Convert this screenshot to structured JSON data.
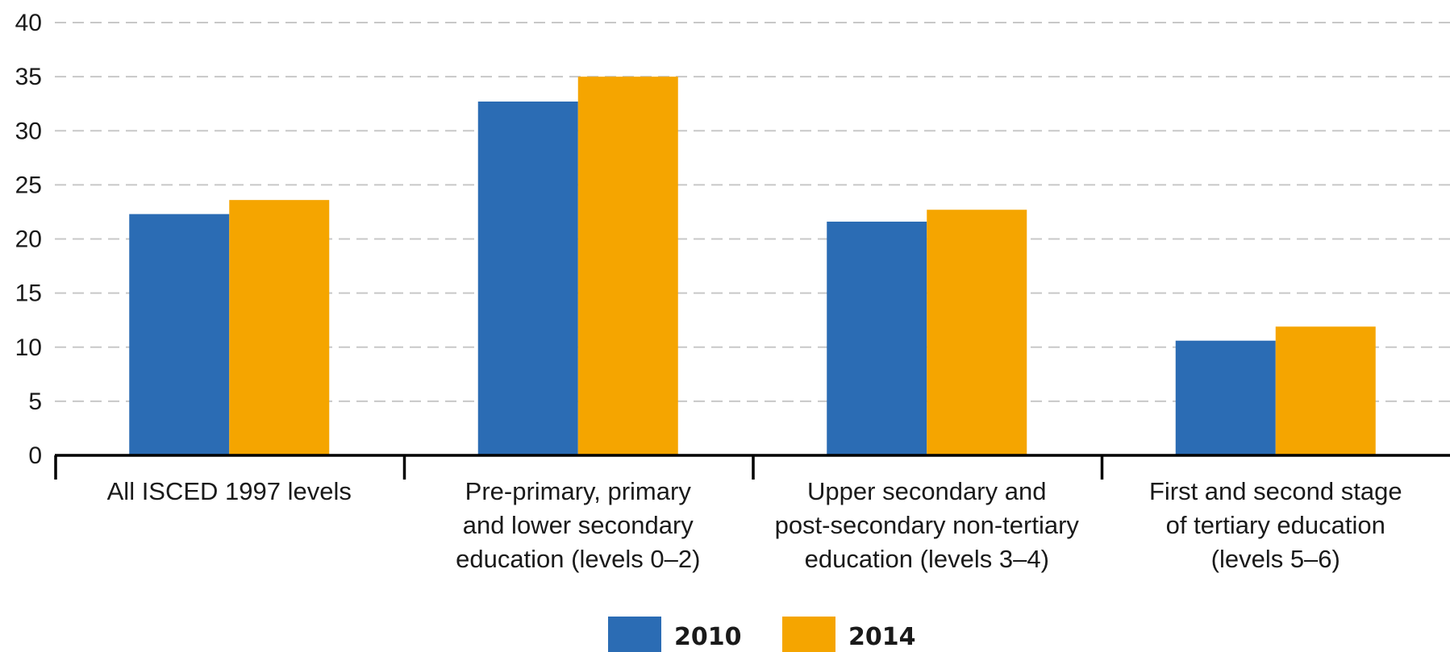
{
  "chart_data": {
    "type": "bar",
    "categories": [
      [
        "All ISCED 1997 levels"
      ],
      [
        "Pre-primary, primary",
        "and lower secondary",
        "education (levels 0–2)"
      ],
      [
        "Upper secondary and",
        "post-secondary non-tertiary",
        "education (levels 3–4)"
      ],
      [
        "First and second stage",
        "of tertiary education",
        "(levels 5–6)"
      ]
    ],
    "series": [
      {
        "name": "2010",
        "color": "#2b6cb4",
        "values": [
          22.3,
          32.7,
          21.6,
          10.6
        ]
      },
      {
        "name": "2014",
        "color": "#f5a500",
        "values": [
          23.6,
          35.0,
          22.7,
          11.9
        ]
      }
    ],
    "y_ticks": [
      0,
      5,
      10,
      15,
      20,
      25,
      30,
      35,
      40
    ],
    "ylim": [
      0,
      40
    ],
    "grid": true,
    "legend_position": "bottom-center"
  }
}
